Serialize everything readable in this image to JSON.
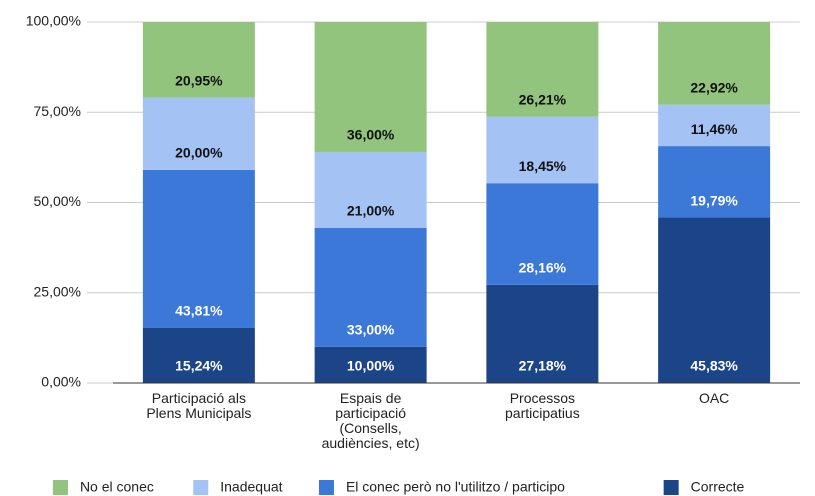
{
  "chart_data": {
    "type": "stacked_bar",
    "categories": [
      "Participació als\nPlens Municipals",
      "Espais de\nparticipació\n(Consells,\naudiències, etc)",
      "Processos\nparticipatius",
      "OAC"
    ],
    "series": [
      {
        "name": "Correcte",
        "color": "#1c4587",
        "values": [
          15.24,
          10.0,
          27.18,
          45.83
        ],
        "value_labels": [
          "15,24%",
          "10,00%",
          "27,18%",
          "45,83%"
        ]
      },
      {
        "name": "El conec però no l'utilitzo / participo",
        "color": "#3c78d8",
        "values": [
          43.81,
          33.0,
          28.16,
          19.79
        ],
        "value_labels": [
          "43,81%",
          "33,00%",
          "28,16%",
          "19,79%"
        ]
      },
      {
        "name": "Inadequat",
        "color": "#a4c2f4",
        "values": [
          20.0,
          21.0,
          18.45,
          11.46
        ],
        "value_labels": [
          "20,00%",
          "21,00%",
          "18,45%",
          "11,46%"
        ]
      },
      {
        "name": "No el conec",
        "color": "#93c47d",
        "values": [
          20.95,
          36.0,
          26.21,
          22.92
        ],
        "value_labels": [
          "20,95%",
          "36,00%",
          "26,21%",
          "22,92%"
        ]
      }
    ],
    "ylim": [
      0,
      100
    ],
    "yticks": [
      {
        "value": 0,
        "label": "0,00%"
      },
      {
        "value": 25,
        "label": "25,00%"
      },
      {
        "value": 50,
        "label": "50,00%"
      },
      {
        "value": 75,
        "label": "75,00%"
      },
      {
        "value": 100,
        "label": "100,00%"
      }
    ],
    "grid": true,
    "legend": "bottom"
  }
}
